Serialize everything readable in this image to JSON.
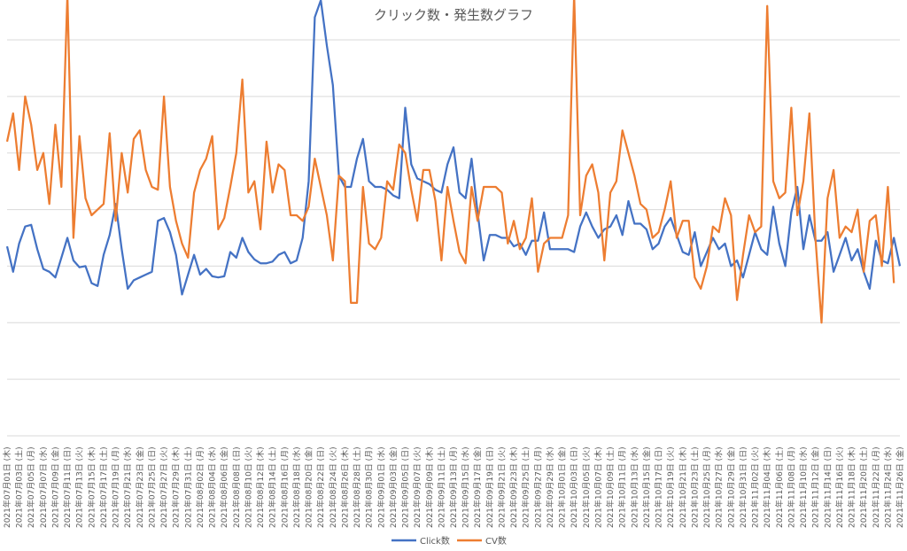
{
  "chart_data": {
    "type": "line",
    "title": "クリック数・発生数グラフ",
    "grid": true,
    "y_ticks_shown": false,
    "y_gridline_count": 7,
    "legend_position": "bottom",
    "start_date": "2021-07-01",
    "x_label_interval_days": 2,
    "x_label_format": "YYYY年MM月DD日 (曜)",
    "weekday_names": [
      "日",
      "月",
      "火",
      "水",
      "木",
      "金",
      "土"
    ],
    "series": [
      {
        "name": "Click数",
        "color": "#4472c4",
        "values": [
          3.35,
          2.9,
          3.4,
          3.7,
          3.73,
          3.3,
          2.95,
          2.9,
          2.8,
          3.15,
          3.5,
          3.1,
          2.98,
          3.0,
          2.7,
          2.65,
          3.2,
          3.55,
          4.1,
          3.3,
          2.6,
          2.75,
          2.8,
          2.85,
          2.9,
          3.8,
          3.85,
          3.6,
          3.2,
          2.5,
          2.85,
          3.2,
          2.85,
          2.95,
          2.82,
          2.8,
          2.82,
          3.25,
          3.15,
          3.5,
          3.25,
          3.12,
          3.05,
          3.05,
          3.08,
          3.2,
          3.25,
          3.05,
          3.1,
          3.5,
          4.5,
          7.4,
          7.7,
          6.9,
          6.2,
          4.6,
          4.4,
          4.4,
          4.9,
          5.25,
          4.5,
          4.4,
          4.4,
          4.35,
          4.25,
          4.2,
          5.8,
          4.8,
          4.55,
          4.5,
          4.45,
          4.35,
          4.3,
          4.8,
          5.1,
          4.3,
          4.2,
          4.9,
          3.95,
          3.1,
          3.55,
          3.55,
          3.5,
          3.5,
          3.35,
          3.4,
          3.2,
          3.45,
          3.45,
          3.95,
          3.3,
          3.3,
          3.3,
          3.3,
          3.25,
          3.7,
          3.95,
          3.7,
          3.5,
          3.65,
          3.7,
          3.9,
          3.55,
          4.15,
          3.75,
          3.75,
          3.65,
          3.3,
          3.4,
          3.7,
          3.85,
          3.55,
          3.25,
          3.2,
          3.6,
          3.0,
          3.25,
          3.5,
          3.3,
          3.4,
          3.0,
          3.1,
          2.8,
          3.2,
          3.6,
          3.3,
          3.2,
          4.05,
          3.4,
          3.0,
          3.95,
          4.4,
          3.3,
          3.9,
          3.45,
          3.45,
          3.6,
          2.9,
          3.2,
          3.5,
          3.1,
          3.3,
          2.9,
          2.6,
          3.45,
          3.1,
          3.05,
          3.5,
          3.0
        ]
      },
      {
        "name": "CV数",
        "color": "#ed7d31",
        "values": [
          5.2,
          5.7,
          4.7,
          6.0,
          5.5,
          4.7,
          5.0,
          4.1,
          5.5,
          4.4,
          7.8,
          3.5,
          5.3,
          4.2,
          3.9,
          4.0,
          4.1,
          5.35,
          3.8,
          5.0,
          4.3,
          5.25,
          5.4,
          4.7,
          4.4,
          4.35,
          6.0,
          4.4,
          3.8,
          3.4,
          3.15,
          4.3,
          4.7,
          4.9,
          5.3,
          3.65,
          3.85,
          4.4,
          5.0,
          6.3,
          4.3,
          4.5,
          3.65,
          5.2,
          4.3,
          4.8,
          4.7,
          3.9,
          3.9,
          3.8,
          4.05,
          4.9,
          4.4,
          3.9,
          3.1,
          4.6,
          4.5,
          2.35,
          2.35,
          4.4,
          3.4,
          3.3,
          3.5,
          4.5,
          4.35,
          5.15,
          5.0,
          4.35,
          3.8,
          4.7,
          4.7,
          4.15,
          3.1,
          4.4,
          3.8,
          3.25,
          3.05,
          4.4,
          3.8,
          4.4,
          4.4,
          4.4,
          4.3,
          3.4,
          3.8,
          3.3,
          3.5,
          4.2,
          2.9,
          3.4,
          3.5,
          3.5,
          3.5,
          3.9,
          7.8,
          3.9,
          4.6,
          4.8,
          4.3,
          3.1,
          4.3,
          4.5,
          5.4,
          5.0,
          4.6,
          4.1,
          4.0,
          3.5,
          3.6,
          4.0,
          4.5,
          3.5,
          3.8,
          3.8,
          2.8,
          2.6,
          3.0,
          3.7,
          3.6,
          4.2,
          3.9,
          2.4,
          3.2,
          3.9,
          3.6,
          3.7,
          7.6,
          4.5,
          4.2,
          4.3,
          5.8,
          3.9,
          4.5,
          5.7,
          3.5,
          2.0,
          4.2,
          4.7,
          3.5,
          3.7,
          3.6,
          4.0,
          2.9,
          3.8,
          3.9,
          3.0,
          4.4,
          2.7
        ]
      }
    ]
  }
}
